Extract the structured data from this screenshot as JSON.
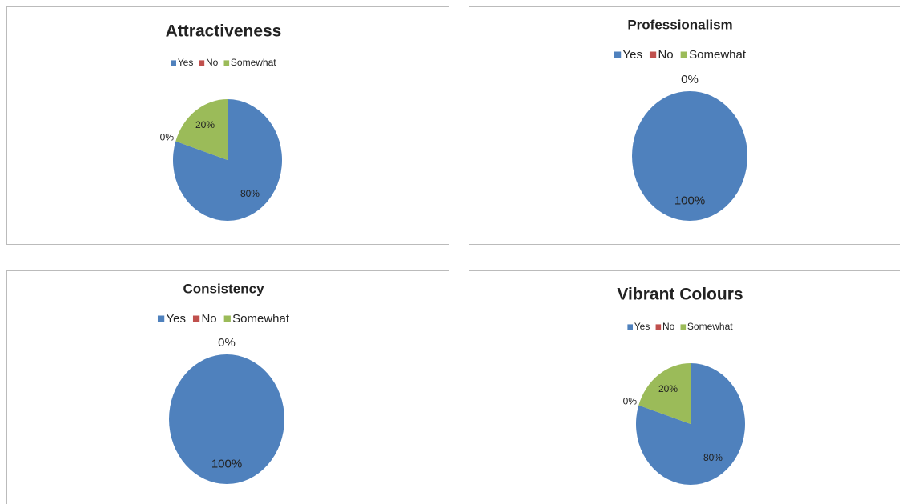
{
  "chart_data": [
    {
      "type": "pie",
      "title": "Attractiveness",
      "categories": [
        "Yes",
        "No",
        "Somewhat"
      ],
      "values": [
        80,
        0,
        20
      ],
      "value_labels": [
        "80%",
        "0%",
        "20%"
      ],
      "colors": [
        "#4f81bd",
        "#c0504d",
        "#9bbb59"
      ]
    },
    {
      "type": "pie",
      "title": "Professionalism",
      "categories": [
        "Yes",
        "No",
        "Somewhat"
      ],
      "values": [
        100,
        0,
        0
      ],
      "value_labels": [
        "100%",
        "0%",
        null
      ],
      "colors": [
        "#4f81bd",
        "#c0504d",
        "#9bbb59"
      ]
    },
    {
      "type": "pie",
      "title": "Consistency",
      "categories": [
        "Yes",
        "No",
        "Somewhat"
      ],
      "values": [
        100,
        0,
        0
      ],
      "value_labels": [
        "100%",
        "0%",
        null
      ],
      "colors": [
        "#4f81bd",
        "#c0504d",
        "#9bbb59"
      ]
    },
    {
      "type": "pie",
      "title": "Vibrant Colours",
      "categories": [
        "Yes",
        "No",
        "Somewhat"
      ],
      "values": [
        80,
        0,
        20
      ],
      "value_labels": [
        "80%",
        "0%",
        "20%"
      ],
      "colors": [
        "#4f81bd",
        "#c0504d",
        "#9bbb59"
      ]
    }
  ]
}
